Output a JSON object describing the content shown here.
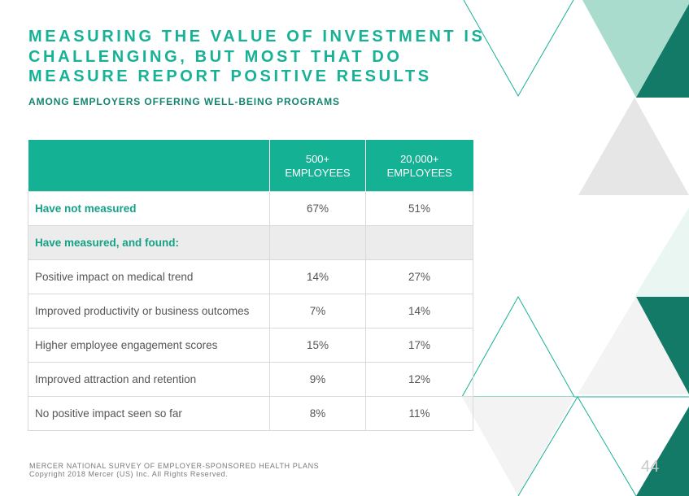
{
  "slide": {
    "title_lines": [
      "MEASURING THE VALUE OF INVESTMENT IS",
      "CHALLENGING, BUT MOST THAT DO",
      "MEASURE REPORT POSITIVE RESULTS"
    ],
    "subtitle": "AMONG EMPLOYERS OFFERING WELL-BEING PROGRAMS",
    "table": {
      "header": {
        "col1": "",
        "col2": [
          "500+",
          "EMPLOYEES"
        ],
        "col3": [
          "20,000+",
          "EMPLOYEES"
        ]
      },
      "rows": [
        {
          "label": "Have not measured",
          "v1": "67%",
          "v2": "51%"
        },
        {
          "label": "Have measured, and found:",
          "v1": "",
          "v2": ""
        },
        {
          "label": "Positive impact on medical trend",
          "v1": "14%",
          "v2": "27%"
        },
        {
          "label": "Improved productivity or business outcomes",
          "v1": "7%",
          "v2": "14%"
        },
        {
          "label": "Higher employee engagement scores",
          "v1": "15%",
          "v2": "17%"
        },
        {
          "label": "Improved attraction and retention",
          "v1": "9%",
          "v2": "12%"
        },
        {
          "label": "No positive impact seen so far",
          "v1": "8%",
          "v2": "11%"
        }
      ]
    },
    "footer": {
      "line1": "MERCER NATIONAL SURVEY OF EMPLOYER-SPONSORED HEALTH PLANS",
      "line2": "Copyright 2018 Mercer (US) Inc. All Rights Reserved."
    },
    "page_number": "44",
    "colors": {
      "accent": "#17b195",
      "dark_teal": "#127a66",
      "light_teal": "#a9dccd",
      "light_gray": "#e6e6e6"
    }
  }
}
